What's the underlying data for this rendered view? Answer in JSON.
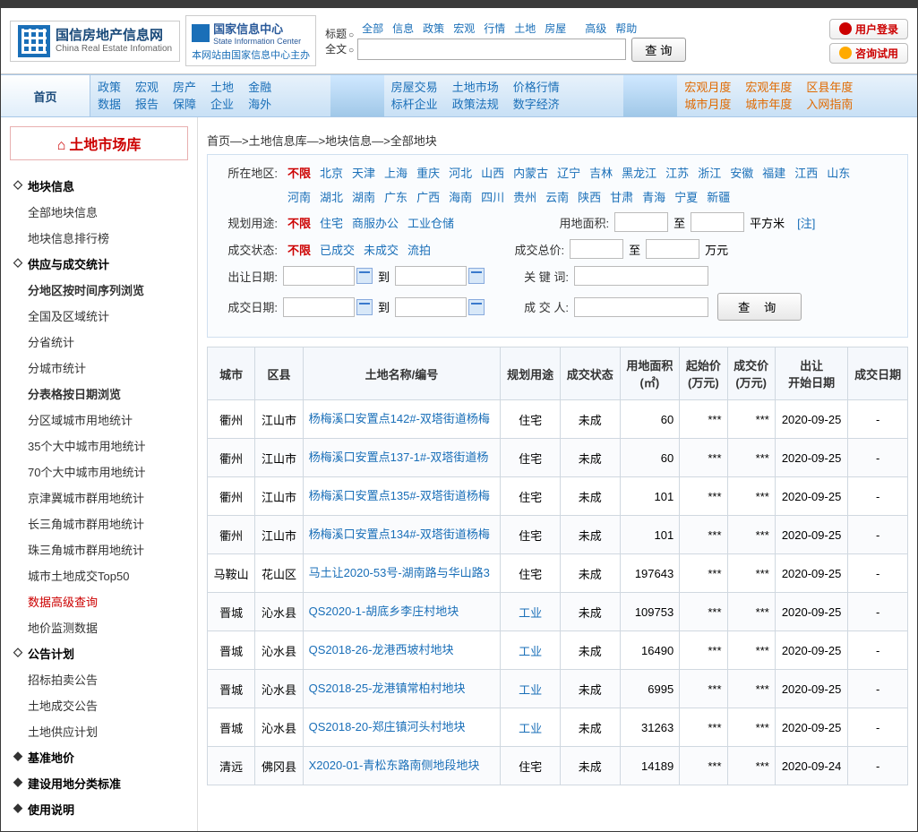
{
  "site": {
    "logo_cn": "国信房地产信息网",
    "logo_en": "China Real Estate Infomation",
    "sic_cn": "国家信息中心",
    "sic_en": "State Information Center",
    "sic_sub": "本网站由国家信息中心主办"
  },
  "top_nav": {
    "links": [
      "全部",
      "信息",
      "政策",
      "宏观",
      "行情",
      "土地",
      "房屋"
    ],
    "advanced": "高级",
    "help": "帮助",
    "title_opt": "标题",
    "fulltext_opt": "全文",
    "search_btn": "查 询",
    "login_btn": "用户登录",
    "consult_btn": "咨询试用"
  },
  "nav": {
    "home": "首页",
    "cols_left": [
      [
        "政策",
        "数据"
      ],
      [
        "宏观",
        "报告"
      ],
      [
        "房产",
        "保障"
      ],
      [
        "土地",
        "企业"
      ],
      [
        "金融",
        "海外"
      ]
    ],
    "cols_mid": [
      [
        "房屋交易",
        "标杆企业"
      ],
      [
        "土地市场",
        "政策法规"
      ],
      [
        "价格行情",
        "数字经济"
      ]
    ],
    "cols_right": [
      [
        "宏观月度",
        "城市月度"
      ],
      [
        "宏观年度",
        "城市年度"
      ],
      [
        "区县年度",
        "入网指南"
      ]
    ]
  },
  "sidebar": {
    "title": "土地市场库",
    "items": [
      {
        "t": "地块信息",
        "cls": "hdr"
      },
      {
        "t": "全部地块信息",
        "cls": "item"
      },
      {
        "t": "地块信息排行榜",
        "cls": "item"
      },
      {
        "t": "供应与成交统计",
        "cls": "hdr"
      },
      {
        "t": "分地区按时间序列浏览",
        "cls": "item bold"
      },
      {
        "t": "全国及区域统计",
        "cls": "item"
      },
      {
        "t": "分省统计",
        "cls": "item"
      },
      {
        "t": "分城市统计",
        "cls": "item"
      },
      {
        "t": "分表格按日期浏览",
        "cls": "item bold"
      },
      {
        "t": "分区域城市用地统计",
        "cls": "item"
      },
      {
        "t": "35个大中城市用地统计",
        "cls": "item"
      },
      {
        "t": "70个大中城市用地统计",
        "cls": "item"
      },
      {
        "t": "京津冀城市群用地统计",
        "cls": "item"
      },
      {
        "t": "长三角城市群用地统计",
        "cls": "item"
      },
      {
        "t": "珠三角城市群用地统计",
        "cls": "item"
      },
      {
        "t": "城市土地成交Top50",
        "cls": "item"
      },
      {
        "t": "数据高级查询",
        "cls": "item red"
      },
      {
        "t": "地价监测数据",
        "cls": "item"
      },
      {
        "t": "公告计划",
        "cls": "hdr"
      },
      {
        "t": "招标拍卖公告",
        "cls": "item"
      },
      {
        "t": "土地成交公告",
        "cls": "item"
      },
      {
        "t": "土地供应计划",
        "cls": "item"
      },
      {
        "t": "基准地价",
        "cls": "hdr solid"
      },
      {
        "t": "建设用地分类标准",
        "cls": "hdr solid"
      },
      {
        "t": "使用说明",
        "cls": "hdr solid"
      }
    ]
  },
  "breadcrumb": "首页—>土地信息库—>地块信息—>全部地块",
  "filters": {
    "region_label": "所在地区:",
    "region_all": "不限",
    "regions1": [
      "北京",
      "天津",
      "上海",
      "重庆",
      "河北",
      "山西",
      "内蒙古",
      "辽宁",
      "吉林",
      "黑龙江",
      "江苏",
      "浙江",
      "安徽",
      "福建",
      "江西",
      "山东"
    ],
    "regions2": [
      "河南",
      "湖北",
      "湖南",
      "广东",
      "广西",
      "海南",
      "四川",
      "贵州",
      "云南",
      "陕西",
      "甘肃",
      "青海",
      "宁夏",
      "新疆"
    ],
    "use_label": "规划用途:",
    "use_all": "不限",
    "uses": [
      "住宅",
      "商服办公",
      "工业仓储"
    ],
    "area_label": "用地面积:",
    "area_unit": "平方米",
    "area_note": "[注]",
    "status_label": "成交状态:",
    "status_all": "不限",
    "statuses": [
      "已成交",
      "未成交",
      "流拍"
    ],
    "total_label": "成交总价:",
    "total_unit": "万元",
    "sell_date_label": "出让日期:",
    "to": "到",
    "keyword_label": "关 键 词:",
    "deal_date_label": "成交日期:",
    "dealer_label": "成 交 人:",
    "search_btn": "查 询"
  },
  "table": {
    "headers": [
      "城市",
      "区县",
      "土地名称/编号",
      "规划用途",
      "成交状态",
      "用地面积(㎡)",
      "起始价(万元)",
      "成交价(万元)",
      "出让开始日期",
      "成交日期"
    ],
    "rows": [
      {
        "city": "衢州",
        "dist": "江山市",
        "name": "杨梅溪口安置点142#-双塔街道杨梅",
        "use": "住宅",
        "st": "未成",
        "area": "60",
        "start": "***",
        "deal": "***",
        "date1": "2020-09-25",
        "date2": "-"
      },
      {
        "city": "衢州",
        "dist": "江山市",
        "name": "杨梅溪口安置点137-1#-双塔街道杨",
        "use": "住宅",
        "st": "未成",
        "area": "60",
        "start": "***",
        "deal": "***",
        "date1": "2020-09-25",
        "date2": "-"
      },
      {
        "city": "衢州",
        "dist": "江山市",
        "name": "杨梅溪口安置点135#-双塔街道杨梅",
        "use": "住宅",
        "st": "未成",
        "area": "101",
        "start": "***",
        "deal": "***",
        "date1": "2020-09-25",
        "date2": "-"
      },
      {
        "city": "衢州",
        "dist": "江山市",
        "name": "杨梅溪口安置点134#-双塔街道杨梅",
        "use": "住宅",
        "st": "未成",
        "area": "101",
        "start": "***",
        "deal": "***",
        "date1": "2020-09-25",
        "date2": "-"
      },
      {
        "city": "马鞍山",
        "dist": "花山区",
        "name": "马土让2020-53号-湖南路与华山路3",
        "use": "住宅",
        "st": "未成",
        "area": "197643",
        "start": "***",
        "deal": "***",
        "date1": "2020-09-25",
        "date2": "-"
      },
      {
        "city": "晋城",
        "dist": "沁水县",
        "name": "QS2020-1-胡底乡李庄村地块",
        "use": "工业",
        "st": "未成",
        "area": "109753",
        "start": "***",
        "deal": "***",
        "date1": "2020-09-25",
        "date2": "-"
      },
      {
        "city": "晋城",
        "dist": "沁水县",
        "name": "QS2018-26-龙港西坡村地块",
        "use": "工业",
        "st": "未成",
        "area": "16490",
        "start": "***",
        "deal": "***",
        "date1": "2020-09-25",
        "date2": "-"
      },
      {
        "city": "晋城",
        "dist": "沁水县",
        "name": "QS2018-25-龙港镇常柏村地块",
        "use": "工业",
        "st": "未成",
        "area": "6995",
        "start": "***",
        "deal": "***",
        "date1": "2020-09-25",
        "date2": "-"
      },
      {
        "city": "晋城",
        "dist": "沁水县",
        "name": "QS2018-20-郑庄镇河头村地块",
        "use": "工业",
        "st": "未成",
        "area": "31263",
        "start": "***",
        "deal": "***",
        "date1": "2020-09-25",
        "date2": "-"
      },
      {
        "city": "清远",
        "dist": "佛冈县",
        "name": "X2020-01-青松东路南侧地段地块",
        "use": "住宅",
        "st": "未成",
        "area": "14189",
        "start": "***",
        "deal": "***",
        "date1": "2020-09-24",
        "date2": "-"
      }
    ]
  }
}
